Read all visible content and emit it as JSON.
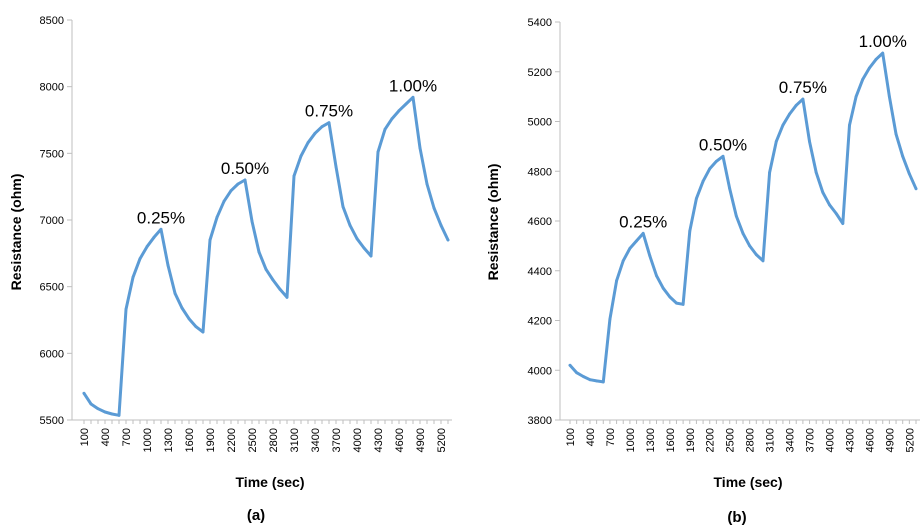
{
  "colors": {
    "line": "#5B9BD5",
    "axis": "#BFBFBF",
    "text": "#000000"
  },
  "chart_data": [
    {
      "type": "line",
      "panel_label": "(a)",
      "xlabel": "Time (sec)",
      "ylabel": "Resistance (ohm)",
      "ylim": [
        5500,
        8500
      ],
      "yticks": [
        5500,
        6000,
        6500,
        7000,
        7500,
        8000,
        8500
      ],
      "xtick_labels": [
        "100",
        "400",
        "700",
        "1000",
        "1300",
        "1600",
        "1900",
        "2200",
        "2500",
        "2800",
        "3100",
        "3400",
        "3700",
        "4000",
        "4300",
        "4600",
        "4900",
        "5200"
      ],
      "grid": false,
      "legend": "none",
      "x": [
        100,
        200,
        300,
        400,
        500,
        600,
        700,
        800,
        900,
        1000,
        1100,
        1200,
        1300,
        1400,
        1500,
        1600,
        1700,
        1800,
        1900,
        2000,
        2100,
        2200,
        2300,
        2400,
        2500,
        2600,
        2700,
        2800,
        2900,
        3000,
        3100,
        3200,
        3300,
        3400,
        3500,
        3600,
        3700,
        3800,
        3900,
        4000,
        4100,
        4200,
        4300,
        4400,
        4500,
        4600,
        4700,
        4800,
        4900,
        5000,
        5100,
        5200,
        5300
      ],
      "series": [
        {
          "values": [
            5700,
            5620,
            5585,
            5560,
            5545,
            5535,
            6330,
            6570,
            6710,
            6800,
            6870,
            6930,
            6660,
            6450,
            6340,
            6260,
            6200,
            6160,
            6850,
            7020,
            7140,
            7220,
            7270,
            7300,
            6990,
            6760,
            6630,
            6550,
            6480,
            6420,
            7330,
            7480,
            7580,
            7650,
            7700,
            7730,
            7400,
            7100,
            6960,
            6860,
            6790,
            6730,
            7510,
            7680,
            7760,
            7820,
            7870,
            7920,
            7540,
            7270,
            7090,
            6960,
            6850
          ]
        }
      ],
      "annotations": [
        {
          "text": "0.25%",
          "x": 1200,
          "y": 6930
        },
        {
          "text": "0.50%",
          "x": 2400,
          "y": 7300
        },
        {
          "text": "0.75%",
          "x": 3600,
          "y": 7730
        },
        {
          "text": "1.00%",
          "x": 4800,
          "y": 7920
        }
      ]
    },
    {
      "type": "line",
      "panel_label": "(b)",
      "xlabel": "Time (sec)",
      "ylabel": "Resistance (ohm)",
      "ylim": [
        3800,
        5400
      ],
      "yticks": [
        3800,
        4000,
        4200,
        4400,
        4600,
        4800,
        5000,
        5200,
        5400
      ],
      "xtick_labels": [
        "100",
        "400",
        "700",
        "1000",
        "1300",
        "1600",
        "1900",
        "2200",
        "2500",
        "2800",
        "3100",
        "3400",
        "3700",
        "4000",
        "4300",
        "4600",
        "4900",
        "5200"
      ],
      "grid": false,
      "legend": "none",
      "x": [
        100,
        200,
        300,
        400,
        500,
        600,
        700,
        800,
        900,
        1000,
        1100,
        1200,
        1300,
        1400,
        1500,
        1600,
        1700,
        1800,
        1900,
        2000,
        2100,
        2200,
        2300,
        2400,
        2500,
        2600,
        2700,
        2800,
        2900,
        3000,
        3100,
        3200,
        3300,
        3400,
        3500,
        3600,
        3700,
        3800,
        3900,
        4000,
        4100,
        4200,
        4300,
        4400,
        4500,
        4600,
        4700,
        4800,
        4900,
        5000,
        5100,
        5200,
        5300
      ],
      "series": [
        {
          "values": [
            4020,
            3990,
            3975,
            3962,
            3957,
            3953,
            4205,
            4360,
            4440,
            4490,
            4520,
            4550,
            4460,
            4380,
            4330,
            4295,
            4270,
            4265,
            4560,
            4690,
            4760,
            4810,
            4840,
            4860,
            4730,
            4620,
            4550,
            4500,
            4465,
            4440,
            4795,
            4920,
            4985,
            5030,
            5065,
            5090,
            4920,
            4795,
            4715,
            4665,
            4630,
            4590,
            4985,
            5100,
            5170,
            5215,
            5250,
            5275,
            5100,
            4950,
            4860,
            4790,
            4730
          ]
        }
      ],
      "annotations": [
        {
          "text": "0.25%",
          "x": 1200,
          "y": 4550
        },
        {
          "text": "0.50%",
          "x": 2400,
          "y": 4860
        },
        {
          "text": "0.75%",
          "x": 3600,
          "y": 5090
        },
        {
          "text": "1.00%",
          "x": 4800,
          "y": 5275
        }
      ]
    }
  ]
}
